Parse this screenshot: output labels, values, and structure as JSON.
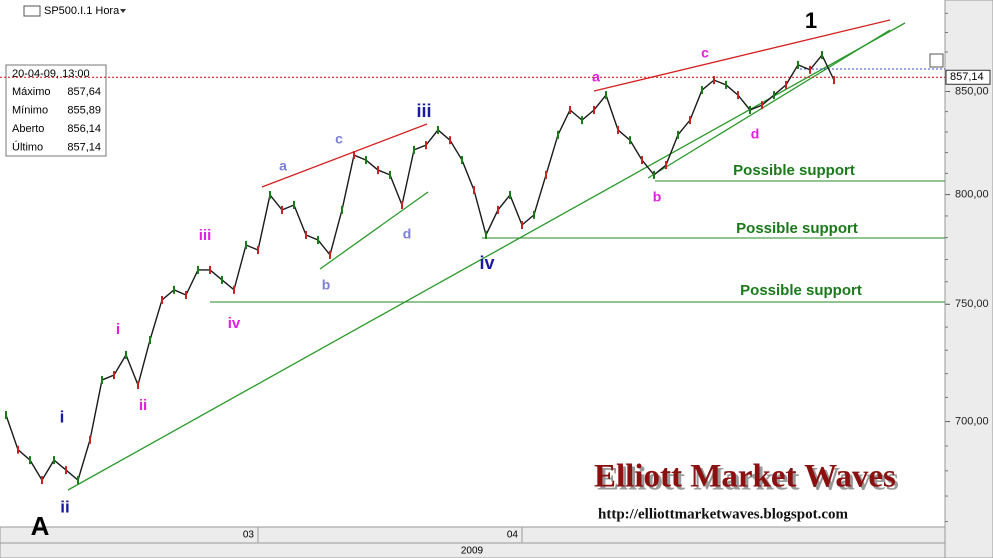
{
  "chart_data": {
    "type": "line",
    "title": "SP500.I.1 Hora",
    "log_scale": true,
    "categories": [
      null,
      null,
      null,
      null,
      null,
      null,
      null,
      null,
      null,
      null,
      null,
      null,
      null,
      null,
      null,
      null,
      null,
      null,
      null,
      null,
      null,
      "03",
      null,
      null,
      null,
      null,
      null,
      null,
      null,
      null,
      null,
      null,
      null,
      null,
      null,
      null,
      null,
      null,
      null,
      null,
      null,
      null,
      null,
      "04",
      null,
      null,
      null,
      null,
      null,
      null,
      null,
      null,
      null,
      null,
      null,
      null,
      null,
      null,
      null,
      null,
      null,
      null,
      null,
      null,
      null,
      null,
      null,
      null,
      null,
      null
    ],
    "x_group_label": "2009",
    "series": [
      {
        "name": "SP500.I",
        "color": "#1a1a1a",
        "values": [
          702.7,
          688.5,
          684.3,
          676.3,
          684.3,
          680.3,
          676.3,
          692.5,
          717.3,
          719.4,
          728.0,
          715.2,
          734.4,
          751.9,
          756.4,
          754.1,
          765.3,
          765.3,
          760.8,
          756.4,
          776.6,
          774.3,
          799.8,
          792.8,
          795.1,
          781.2,
          778.9,
          772.1,
          792.8,
          818.8,
          816.4,
          811.6,
          809.3,
          795.1,
          821.3,
          823.6,
          831.0,
          826.0,
          816.4,
          802.1,
          781.2,
          792.8,
          799.8,
          785.8,
          790.5,
          809.3,
          828.6,
          840.8,
          835.8,
          840.8,
          848.2,
          831.0,
          826.0,
          816.4,
          809.3,
          814.0,
          828.6,
          835.8,
          850.7,
          855.7,
          853.3,
          848.2,
          840.8,
          843.2,
          848.2,
          853.3,
          863.4,
          860.9,
          868.4,
          855.7
        ]
      }
    ],
    "ylim": [
      657.9,
      897
    ],
    "yticks": [
      {
        "value": 700,
        "label": "700,00"
      },
      {
        "value": 750,
        "label": "750,00"
      },
      {
        "value": 800,
        "label": "800,00"
      },
      {
        "value": 850,
        "label": "850,00"
      }
    ],
    "last_price": {
      "value": 857.14,
      "label": "857,14"
    },
    "info_box": {
      "date": "20-04-09, 13:00",
      "rows": [
        [
          "Máximo",
          "857,64"
        ],
        [
          "Mínimo",
          "855,89"
        ],
        [
          "Aberto",
          "856,14"
        ],
        [
          "Último",
          "857,14"
        ]
      ]
    },
    "annotations": [
      {
        "text": "A",
        "color": "#000000"
      },
      {
        "text": "i",
        "color": "#1a1aa0"
      },
      {
        "text": "ii",
        "color": "#1a1aa0"
      },
      {
        "text": "i",
        "color": "#e020e0"
      },
      {
        "text": "ii",
        "color": "#e020e0"
      },
      {
        "text": "iii",
        "color": "#e020e0"
      },
      {
        "text": "iv",
        "color": "#e020e0"
      },
      {
        "text": "a",
        "color": "#7b7fd6"
      },
      {
        "text": "b",
        "color": "#7b7fd6"
      },
      {
        "text": "c",
        "color": "#7b7fd6"
      },
      {
        "text": "d",
        "color": "#7b7fd6"
      },
      {
        "text": "iii",
        "color": "#1a1aa0"
      },
      {
        "text": "iv",
        "color": "#1a1aa0"
      },
      {
        "text": "a",
        "color": "#e020e0"
      },
      {
        "text": "b",
        "color": "#e020e0"
      },
      {
        "text": "c",
        "color": "#e020e0"
      },
      {
        "text": "d",
        "color": "#e020e0"
      },
      {
        "text": "1",
        "color": "#000000"
      },
      {
        "text": "Possible support",
        "color": "#1a7a1a"
      },
      {
        "text": "Possible support",
        "color": "#1a7a1a"
      },
      {
        "text": "Possible support",
        "color": "#1a7a1a"
      }
    ],
    "watermark": {
      "title": "Elliott Market Waves",
      "url": "http://elliottmarketwaves.blogspot.com"
    }
  }
}
